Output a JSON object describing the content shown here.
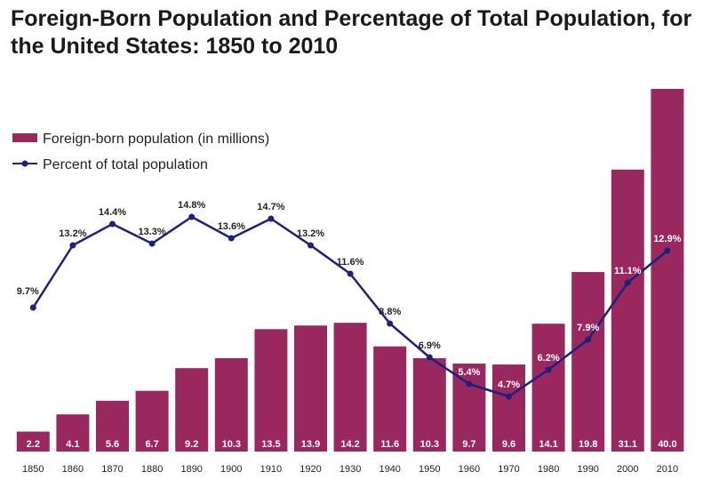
{
  "chart_data": {
    "type": "bar",
    "title": "Foreign-Born Population and Percentage of Total Population, for the United States: 1850 to 2010",
    "categories": [
      "1850",
      "1860",
      "1870",
      "1880",
      "1890",
      "1900",
      "1910",
      "1920",
      "1930",
      "1940",
      "1950",
      "1960",
      "1970",
      "1980",
      "1990",
      "2000",
      "2010"
    ],
    "series": [
      {
        "name": "Foreign-born population (in millions)",
        "type": "bar",
        "color": "#98285e",
        "values": [
          2.2,
          4.1,
          5.6,
          6.7,
          9.2,
          10.3,
          13.5,
          13.9,
          14.2,
          11.6,
          10.3,
          9.7,
          9.6,
          14.1,
          19.8,
          31.1,
          40.0
        ],
        "labels": [
          "2.2",
          "4.1",
          "5.6",
          "6.7",
          "9.2",
          "10.3",
          "13.5",
          "13.9",
          "14.2",
          "11.6",
          "10.3",
          "9.7",
          "9.6",
          "14.1",
          "19.8",
          "31.1",
          "40.0"
        ]
      },
      {
        "name": "Percent of total population",
        "type": "line",
        "color": "#1c2180",
        "values": [
          9.7,
          13.2,
          14.4,
          13.3,
          14.8,
          13.6,
          14.7,
          13.2,
          11.6,
          8.8,
          6.9,
          5.4,
          4.7,
          6.2,
          7.9,
          11.1,
          12.9
        ],
        "labels": [
          "9.7%",
          "13.2%",
          "14.4%",
          "13.3%",
          "14.8%",
          "13.6%",
          "14.7%",
          "13.2%",
          "11.6%",
          "8.8%",
          "6.9%",
          "5.4%",
          "4.7%",
          "6.2%",
          "7.9%",
          "11.1%",
          "12.9%"
        ]
      }
    ],
    "xlabel": "",
    "ylabel": "",
    "ylim_millions": [
      0,
      40.0
    ],
    "ylim_percent": [
      0,
      18
    ],
    "grid": false,
    "legend_position": "top-left"
  }
}
